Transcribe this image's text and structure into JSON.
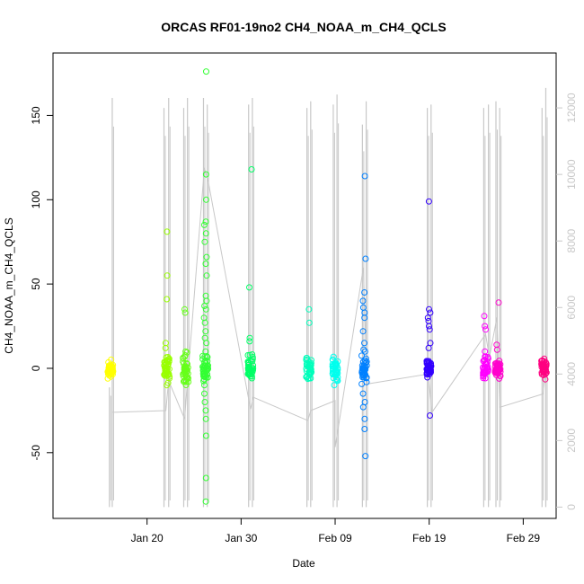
{
  "chart_data": {
    "type": "scatter",
    "title": "ORCAS RF01-19no2 CH4_NOAA_m_CH4_QCLS",
    "xlabel": "Date",
    "ylabel": "CH4_NOAA_m_CH4_QCLS",
    "x_ticks": [
      "Jan 20",
      "Jan 30",
      "Feb 09",
      "Feb 19",
      "Feb 29"
    ],
    "y_ticks": [
      "-50",
      "0",
      "50",
      "100",
      "150"
    ],
    "y_tick_values": [
      -50,
      0,
      50,
      100,
      150
    ],
    "y_right_ticks": [
      "0",
      "2000",
      "4000",
      "6000",
      "8000",
      "10000",
      "12000"
    ],
    "y_right_tick_values": [
      0,
      2000,
      4000,
      6000,
      8000,
      10000,
      12000
    ],
    "x_tick_days": [
      20,
      30,
      40,
      50,
      60
    ],
    "xlim_days": [
      10,
      63.5
    ],
    "ylim": [
      -89,
      187
    ],
    "y_right_lim": [
      -340,
      13650
    ],
    "x_axis_note": "day of year, Jan 1 = 1",
    "grid": false,
    "right_axis_color": "#c8c8c8",
    "altitude_line_color": "#c8c8c8",
    "flights": [
      {
        "day": 16.1,
        "color": "#ffff00",
        "n": 40,
        "spread": 5,
        "outliers": []
      },
      {
        "day": 22.1,
        "color": "#99ff00",
        "n": 40,
        "spread": 8,
        "outliers": [
          81,
          55,
          41,
          15,
          12,
          -10
        ]
      },
      {
        "day": 24.1,
        "color": "#66ff1a",
        "n": 40,
        "spread": 8,
        "outliers": [
          35,
          33,
          10,
          -8
        ]
      },
      {
        "day": 26.2,
        "color": "#33ff33",
        "n": 40,
        "spread": 8,
        "outliers": [
          176,
          115,
          100,
          87,
          85,
          80,
          75,
          66,
          62,
          55,
          43,
          40,
          37,
          35,
          30,
          27,
          22,
          18,
          15,
          10,
          7,
          -10,
          -15,
          -20,
          -25,
          -30,
          -40,
          -65,
          -79
        ]
      },
      {
        "day": 31.0,
        "color": "#00ff66",
        "n": 40,
        "spread": 7,
        "outliers": [
          118,
          48,
          18,
          16
        ]
      },
      {
        "day": 37.2,
        "color": "#00ffbb",
        "n": 40,
        "spread": 6,
        "outliers": [
          35,
          27
        ]
      },
      {
        "day": 40.0,
        "color": "#00ffee",
        "n": 40,
        "spread": 6,
        "outliers": [
          -10
        ]
      },
      {
        "day": 43.1,
        "color": "#0080ff",
        "n": 40,
        "spread": 10,
        "outliers": [
          114,
          65,
          45,
          40,
          36,
          33,
          30,
          22,
          15,
          10,
          -15,
          -20,
          -23,
          -30,
          -36,
          -52
        ]
      },
      {
        "day": 50.0,
        "color": "#3300ff",
        "n": 40,
        "spread": 5,
        "outliers": [
          99,
          35,
          33,
          30,
          28,
          25,
          23,
          15,
          12,
          -28
        ]
      },
      {
        "day": 56.0,
        "color": "#ff00ff",
        "n": 40,
        "spread": 7,
        "outliers": [
          31,
          25,
          23,
          10,
          7
        ]
      },
      {
        "day": 57.3,
        "color": "#ff00cc",
        "n": 40,
        "spread": 5,
        "outliers": [
          39,
          14,
          11
        ]
      },
      {
        "day": 62.2,
        "color": "#ff0080",
        "n": 40,
        "spread": 5,
        "outliers": []
      }
    ],
    "altitude_spikes": [
      {
        "day": 16.0,
        "top": 3600,
        "bot": 0
      },
      {
        "day": 16.3,
        "top": 12300,
        "bot": 0
      },
      {
        "day": 21.8,
        "top": 12000,
        "bot": 0
      },
      {
        "day": 22.3,
        "top": 12300,
        "bot": 0
      },
      {
        "day": 23.9,
        "top": 12000,
        "bot": 0
      },
      {
        "day": 24.3,
        "top": 12300,
        "bot": 0
      },
      {
        "day": 26.0,
        "top": 12300,
        "bot": 0
      },
      {
        "day": 26.4,
        "top": 12100,
        "bot": 0
      },
      {
        "day": 30.8,
        "top": 12100,
        "bot": 0
      },
      {
        "day": 31.2,
        "top": 12300,
        "bot": 0
      },
      {
        "day": 37.0,
        "top": 12000,
        "bot": 0
      },
      {
        "day": 37.4,
        "top": 12200,
        "bot": 0
      },
      {
        "day": 39.8,
        "top": 12100,
        "bot": 0
      },
      {
        "day": 40.2,
        "top": 12400,
        "bot": 0
      },
      {
        "day": 42.9,
        "top": 11500,
        "bot": 0
      },
      {
        "day": 43.3,
        "top": 12200,
        "bot": 0
      },
      {
        "day": 49.8,
        "top": 12000,
        "bot": 0
      },
      {
        "day": 50.2,
        "top": 12100,
        "bot": 0
      },
      {
        "day": 55.8,
        "top": 12000,
        "bot": 0
      },
      {
        "day": 56.3,
        "top": 12100,
        "bot": 0
      },
      {
        "day": 57.1,
        "top": 12200,
        "bot": 0
      },
      {
        "day": 57.5,
        "top": 12000,
        "bot": 0
      },
      {
        "day": 62.0,
        "top": 12000,
        "bot": 0
      },
      {
        "day": 62.4,
        "top": 12600,
        "bot": 0
      }
    ],
    "altitude_ferry": [
      [
        16.3,
        2850
      ],
      [
        22.0,
        2900
      ],
      [
        22.3,
        3800
      ],
      [
        24.0,
        2650
      ],
      [
        24.3,
        3800
      ],
      [
        26.1,
        10200
      ],
      [
        26.5,
        9800
      ],
      [
        31.0,
        2950
      ],
      [
        31.3,
        3300
      ],
      [
        37.1,
        2600
      ],
      [
        37.4,
        2900
      ],
      [
        40.0,
        3200
      ],
      [
        40.0,
        1800
      ],
      [
        40.4,
        2500
      ],
      [
        43.0,
        7200
      ],
      [
        43.4,
        3700
      ],
      [
        49.9,
        4000
      ],
      [
        50.3,
        2850
      ],
      [
        56.0,
        5200
      ],
      [
        56.4,
        4500
      ],
      [
        57.2,
        5700
      ],
      [
        57.5,
        3000
      ],
      [
        62.1,
        3400
      ],
      [
        62.4,
        4100
      ]
    ]
  }
}
